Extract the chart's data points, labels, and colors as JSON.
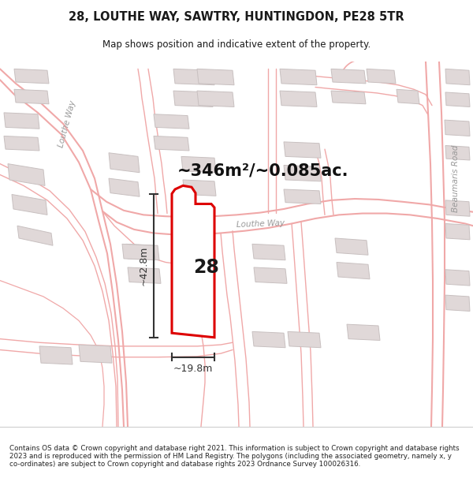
{
  "title_line1": "28, LOUTHE WAY, SAWTRY, HUNTINGDON, PE28 5TR",
  "title_line2": "Map shows position and indicative extent of the property.",
  "area_label": "~346m²/~0.085ac.",
  "width_label": "~19.8m",
  "height_label": "~42.8m",
  "number_label": "28",
  "footer_text": "Contains OS data © Crown copyright and database right 2021. This information is subject to Crown copyright and database rights 2023 and is reproduced with the permission of HM Land Registry. The polygons (including the associated geometry, namely x, y co-ordinates) are subject to Crown copyright and database rights 2023 Ordnance Survey 100026316.",
  "bg_color": "#ffffff",
  "map_bg": "#ffffff",
  "road_outline_color": "#f0a8a8",
  "road_fill_color": "#ffffff",
  "building_fill": "#e0d8d8",
  "building_edge": "#c8c0c0",
  "property_color": "#dd0000",
  "meas_color": "#333333",
  "road_label_color": "#999999",
  "title_color": "#1a1a1a",
  "footer_color": "#222222",
  "title_fontsize": 10.5,
  "subtitle_fontsize": 8.5,
  "area_fontsize": 15,
  "number_fontsize": 17,
  "meas_fontsize": 9,
  "road_label_fontsize": 7.5
}
